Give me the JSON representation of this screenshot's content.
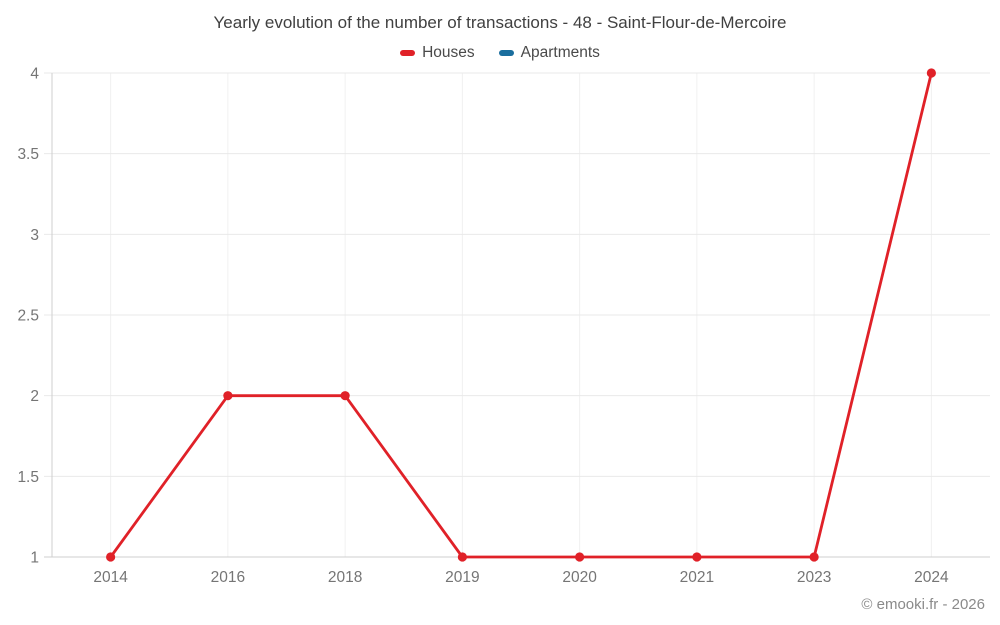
{
  "chart_data": {
    "type": "line",
    "title": "Yearly evolution of the number of transactions - 48 - Saint-Flour-de-Mercoire",
    "categories": [
      "2014",
      "2016",
      "2018",
      "2019",
      "2020",
      "2021",
      "2023",
      "2024"
    ],
    "series": [
      {
        "name": "Houses",
        "color": "#e02128",
        "values": [
          1,
          2,
          2,
          1,
          1,
          1,
          1,
          4
        ]
      },
      {
        "name": "Apartments",
        "color": "#1a6e9e",
        "values": []
      }
    ],
    "xlabel": "",
    "ylabel": "",
    "ylim": [
      1,
      4
    ],
    "y_ticks": [
      "1",
      "1.5",
      "2",
      "2.5",
      "3",
      "3.5",
      "4"
    ],
    "grid": true,
    "legend_position": "top",
    "colors": {
      "grid_horizontal": "#e9e9e9",
      "grid_vertical": "#f0f0f0",
      "axis": "#cfcfcf",
      "tick_label": "#757575",
      "title_text": "#404040",
      "legend_text": "#4a4a4a"
    }
  },
  "footer": {
    "copyright": "© emooki.fr - 2026"
  }
}
